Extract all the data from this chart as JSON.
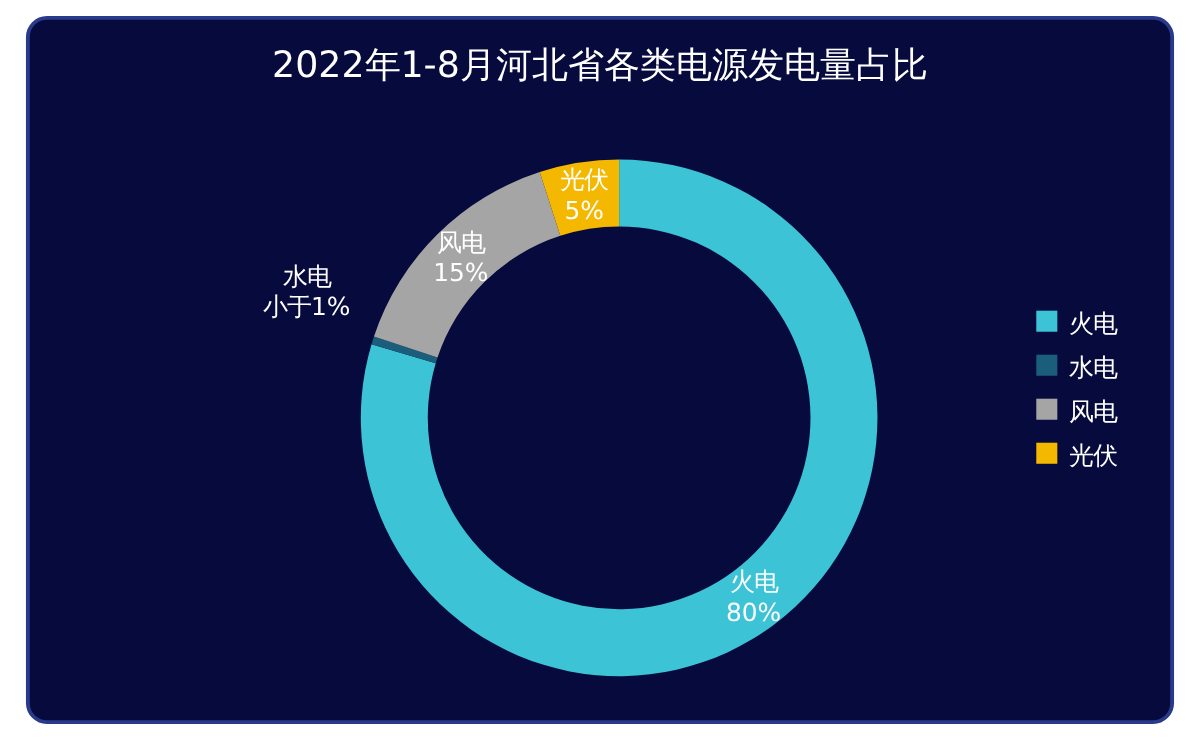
{
  "chart_data": {
    "type": "donut",
    "title": "2022年1-8月河北省各类电源发电量占比",
    "categories": [
      "火电",
      "水电",
      "风电",
      "光伏"
    ],
    "values": [
      80,
      0.5,
      15,
      5
    ],
    "value_labels": [
      "80%",
      "小于1%",
      "15%",
      "5%"
    ],
    "colors": [
      "#3cc3d6",
      "#1b5e7c",
      "#a5a5a5",
      "#f4b800"
    ],
    "legend": "right"
  }
}
